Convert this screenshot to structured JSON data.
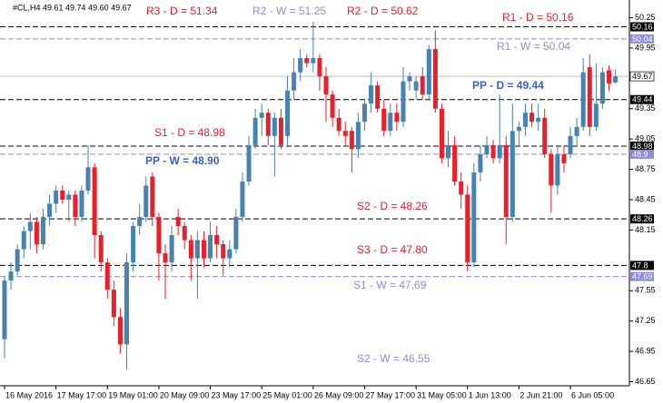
{
  "chart_data": {
    "type": "candlestick",
    "header": "#CL,H4 49.61 49.74 49.60 49.67",
    "up_color": "#4682b4",
    "down_color": "#e8202a",
    "price_line_color": "#c0c0c0",
    "categories": [
      "16 May 2016",
      null,
      null,
      null,
      null,
      null,
      null,
      null,
      "17 May 17:00",
      null,
      null,
      null,
      null,
      null,
      null,
      null,
      "19 May 01:00",
      null,
      null,
      null,
      null,
      null,
      null,
      null,
      "20 May 09:00",
      null,
      null,
      null,
      null,
      null,
      null,
      null,
      "23 May 17:00",
      null,
      null,
      null,
      null,
      null,
      null,
      null,
      "25 May 01:00",
      null,
      null,
      null,
      null,
      null,
      null,
      null,
      "26 May 09:00",
      null,
      null,
      null,
      null,
      null,
      null,
      null,
      "27 May 17:00",
      null,
      null,
      null,
      null,
      null,
      null,
      null,
      "31 May 05:00",
      null,
      null,
      null,
      null,
      null,
      null,
      null,
      "1 Jun 13:00",
      null,
      null,
      null,
      null,
      null,
      null,
      null,
      "2 Jun 21:00",
      null,
      null,
      null,
      null,
      null,
      null,
      null,
      "6 Jun 05:00",
      null,
      null,
      null,
      null,
      null,
      null,
      null
    ],
    "open": [
      47.07,
      47.65,
      47.74,
      47.96,
      48.14,
      48.23,
      48.01,
      48.28,
      48.41,
      48.54,
      48.45,
      48.5,
      48.28,
      48.54,
      48.77,
      48.1,
      47.83,
      47.56,
      47.29,
      47.02,
      47.83,
      48.19,
      48.28,
      48.68,
      48.28,
      47.92,
      47.83,
      48.28,
      48.19,
      48.05,
      47.87,
      48.05,
      47.87,
      48.1,
      48.01,
      47.87,
      47.96,
      48.28,
      48.63,
      48.99,
      49.26,
      49.31,
      49.08,
      49.26,
      49.08,
      49.53,
      49.71,
      49.85,
      49.8,
      49.85,
      49.67,
      49.49,
      49.26,
      49.13,
      49.13,
      48.95,
      49.22,
      49.4,
      49.58,
      49.35,
      49.13,
      49.31,
      49.22,
      49.62,
      49.53,
      49.67,
      49.49,
      49.94,
      49.35,
      48.86,
      48.99,
      48.63,
      48.5,
      47.83,
      48.72,
      48.9,
      48.99,
      48.86,
      48.99,
      48.28,
      49.13,
      49.17,
      49.31,
      49.22,
      49.26,
      48.9,
      48.59,
      48.9,
      48.9,
      49.08,
      49.17,
      49.76,
      49.17,
      49.4,
      49.73,
      49.61
    ],
    "high": [
      47.7,
      47.83,
      48.01,
      48.19,
      48.32,
      48.28,
      48.36,
      48.5,
      48.59,
      48.59,
      48.54,
      48.54,
      48.59,
      48.99,
      48.81,
      48.14,
      47.87,
      47.65,
      47.38,
      47.92,
      48.23,
      48.41,
      48.68,
      48.72,
      48.32,
      48.01,
      48.19,
      48.36,
      48.23,
      48.1,
      48.14,
      48.14,
      48.23,
      48.19,
      48.05,
      48.05,
      48.36,
      48.72,
      49.08,
      49.35,
      49.4,
      49.35,
      49.31,
      49.35,
      49.67,
      49.85,
      49.94,
      49.89,
      50.21,
      49.89,
      49.76,
      49.53,
      49.35,
      49.22,
      49.17,
      49.31,
      49.44,
      49.71,
      49.62,
      49.44,
      49.4,
      49.4,
      49.76,
      49.71,
      49.67,
      49.76,
      49.98,
      50.12,
      49.4,
      49.13,
      49.08,
      48.72,
      48.59,
      48.81,
      48.99,
      49.08,
      49.04,
      49.49,
      49.08,
      49.4,
      49.22,
      49.4,
      49.4,
      49.4,
      49.35,
      48.95,
      48.99,
      48.99,
      49.17,
      49.26,
      49.85,
      49.89,
      49.8,
      49.76,
      49.78,
      49.74
    ],
    "low": [
      46.88,
      47.56,
      47.7,
      47.87,
      47.96,
      47.92,
      47.96,
      48.19,
      48.32,
      48.41,
      48.23,
      48.19,
      48.23,
      48.5,
      47.87,
      47.74,
      47.47,
      47.2,
      46.93,
      46.77,
      47.74,
      48.1,
      48.23,
      48.19,
      47.65,
      47.47,
      47.74,
      48.1,
      47.96,
      47.65,
      47.47,
      47.78,
      47.83,
      47.87,
      47.7,
      47.78,
      47.92,
      48.23,
      48.59,
      48.95,
      49.08,
      48.99,
      48.68,
      48.95,
      48.99,
      49.44,
      49.62,
      49.76,
      49.71,
      49.53,
      49.22,
      49.17,
      49.08,
      48.99,
      48.72,
      48.86,
      49.13,
      49.31,
      49.31,
      49.08,
      49.08,
      49.13,
      49.17,
      49.53,
      49.44,
      49.44,
      49.44,
      49.31,
      48.81,
      48.77,
      48.59,
      48.36,
      47.74,
      47.78,
      48.63,
      48.86,
      48.81,
      48.81,
      48.01,
      48.23,
      48.99,
      49.08,
      49.17,
      49.13,
      48.86,
      48.32,
      48.5,
      48.72,
      48.86,
      48.99,
      49.13,
      49.08,
      49.13,
      49.35,
      49.53,
      49.6
    ],
    "close": [
      47.65,
      47.74,
      47.96,
      48.14,
      48.23,
      48.01,
      48.28,
      48.41,
      48.54,
      48.45,
      48.5,
      48.28,
      48.54,
      48.77,
      48.1,
      47.83,
      47.56,
      47.29,
      47.02,
      47.83,
      48.19,
      48.28,
      48.59,
      48.28,
      47.92,
      47.83,
      48.1,
      48.19,
      48.05,
      47.87,
      48.05,
      47.87,
      48.1,
      48.01,
      47.87,
      47.96,
      48.28,
      48.63,
      48.99,
      49.26,
      49.31,
      49.08,
      49.26,
      48.99,
      49.53,
      49.71,
      49.85,
      49.8,
      49.85,
      49.67,
      49.49,
      49.26,
      49.13,
      49.08,
      48.95,
      49.22,
      49.4,
      49.58,
      49.35,
      49.13,
      49.31,
      49.22,
      49.62,
      49.67,
      49.62,
      49.49,
      49.94,
      49.35,
      48.86,
      48.99,
      48.63,
      48.5,
      47.83,
      48.72,
      48.9,
      48.99,
      48.86,
      48.99,
      48.28,
      49.13,
      49.17,
      49.31,
      49.22,
      49.26,
      48.9,
      48.59,
      48.9,
      48.81,
      49.08,
      49.17,
      49.71,
      49.17,
      49.4,
      49.71,
      49.6,
      49.67
    ],
    "ylim": [
      46.61,
      50.38
    ],
    "yticks": [
      46.65,
      46.95,
      47.25,
      47.55,
      48.15,
      48.45,
      48.75,
      49.05,
      49.35,
      49.95,
      50.25
    ],
    "levels": [
      {
        "value": 50.16,
        "color": "#000000"
      },
      {
        "value": 50.04,
        "color": "#8c8cd8"
      },
      {
        "value": 49.44,
        "color": "#000000"
      },
      {
        "value": 48.98,
        "color": "#000000"
      },
      {
        "value": 48.9,
        "color": "#8c8cd8"
      },
      {
        "value": 48.26,
        "color": "#000000"
      },
      {
        "value": 47.8,
        "color": "#000000"
      },
      {
        "value": 47.69,
        "color": "#8c8cd8"
      }
    ],
    "annotations": [
      {
        "text": "R3 - D = 51.34",
        "color": "#e8202a"
      },
      {
        "text": "R2 - W = 51.25",
        "color": "#8c8cd8"
      },
      {
        "text": "R2 - D = 50.62",
        "color": "#e8202a"
      },
      {
        "text": "R1 - D = 50.16",
        "color": "#e8202a"
      },
      {
        "text": "R1 - W = 50.04",
        "color": "#8c8cd8"
      },
      {
        "text": "PP - D = 49.44",
        "color": "#3a5fcd"
      },
      {
        "text": "S1 - D = 48.98",
        "color": "#e8202a"
      },
      {
        "text": "PP - W = 48.90",
        "color": "#3a5fcd"
      },
      {
        "text": "S2 - D = 48.26",
        "color": "#e8202a"
      },
      {
        "text": "S3 - D = 47.80",
        "color": "#e8202a"
      },
      {
        "text": "S1 - W = 47.69",
        "color": "#8c8cd8"
      },
      {
        "text": "S2 - W = 46.55",
        "color": "#8c8cd8"
      }
    ]
  }
}
